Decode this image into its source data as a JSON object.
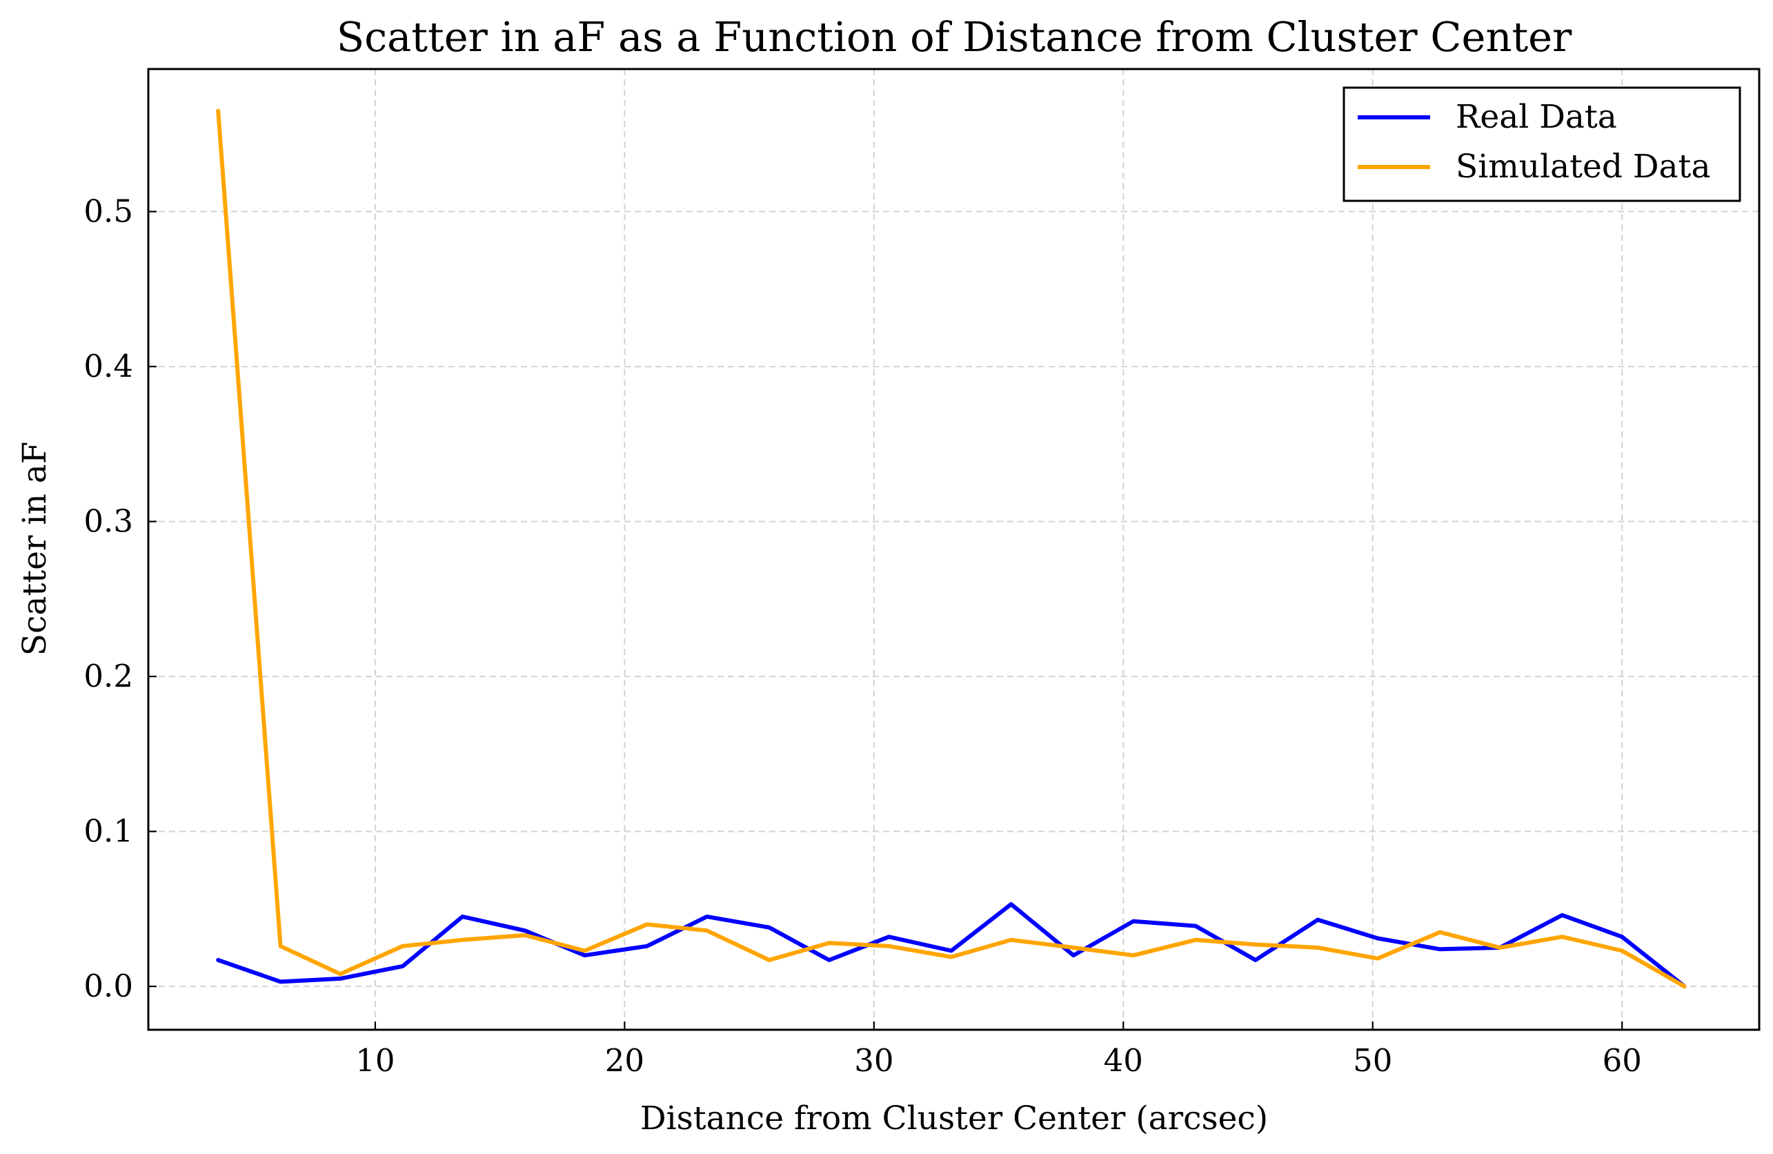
{
  "chart_data": {
    "type": "line",
    "title": "Scatter in aF as a Function of Distance from Cluster Center",
    "xlabel": "Distance from Cluster Center (arcsec)",
    "ylabel": "Scatter in aF",
    "xlim": [
      0.9,
      65.5
    ],
    "ylim": [
      -0.028,
      0.592
    ],
    "xticks": [
      10,
      20,
      30,
      40,
      50,
      60
    ],
    "yticks": [
      0.0,
      0.1,
      0.2,
      0.3,
      0.4,
      0.5
    ],
    "ytick_labels": [
      "0.0",
      "0.1",
      "0.2",
      "0.3",
      "0.4",
      "0.5"
    ],
    "grid": true,
    "legend_position": "top-right",
    "x": [
      3.7,
      6.2,
      8.6,
      11.1,
      13.5,
      16.0,
      18.4,
      20.9,
      23.3,
      25.8,
      28.2,
      30.6,
      33.1,
      35.5,
      38.0,
      40.4,
      42.9,
      45.3,
      47.8,
      50.2,
      52.7,
      55.1,
      57.6,
      60.0,
      62.5
    ],
    "series": [
      {
        "name": "Real Data",
        "color": "#0000ff",
        "values": [
          0.017,
          0.003,
          0.005,
          0.013,
          0.045,
          0.036,
          0.02,
          0.026,
          0.045,
          0.038,
          0.017,
          0.032,
          0.023,
          0.053,
          0.02,
          0.042,
          0.039,
          0.017,
          0.043,
          0.031,
          0.024,
          0.025,
          0.046,
          0.032,
          0.0
        ]
      },
      {
        "name": "Simulated Data",
        "color": "#ffa500",
        "values": [
          0.565,
          0.026,
          0.008,
          0.026,
          0.03,
          0.033,
          0.023,
          0.04,
          0.036,
          0.017,
          0.028,
          0.026,
          0.019,
          0.03,
          0.025,
          0.02,
          0.03,
          0.027,
          0.025,
          0.018,
          0.035,
          0.025,
          0.032,
          0.023,
          0.0
        ]
      }
    ]
  }
}
